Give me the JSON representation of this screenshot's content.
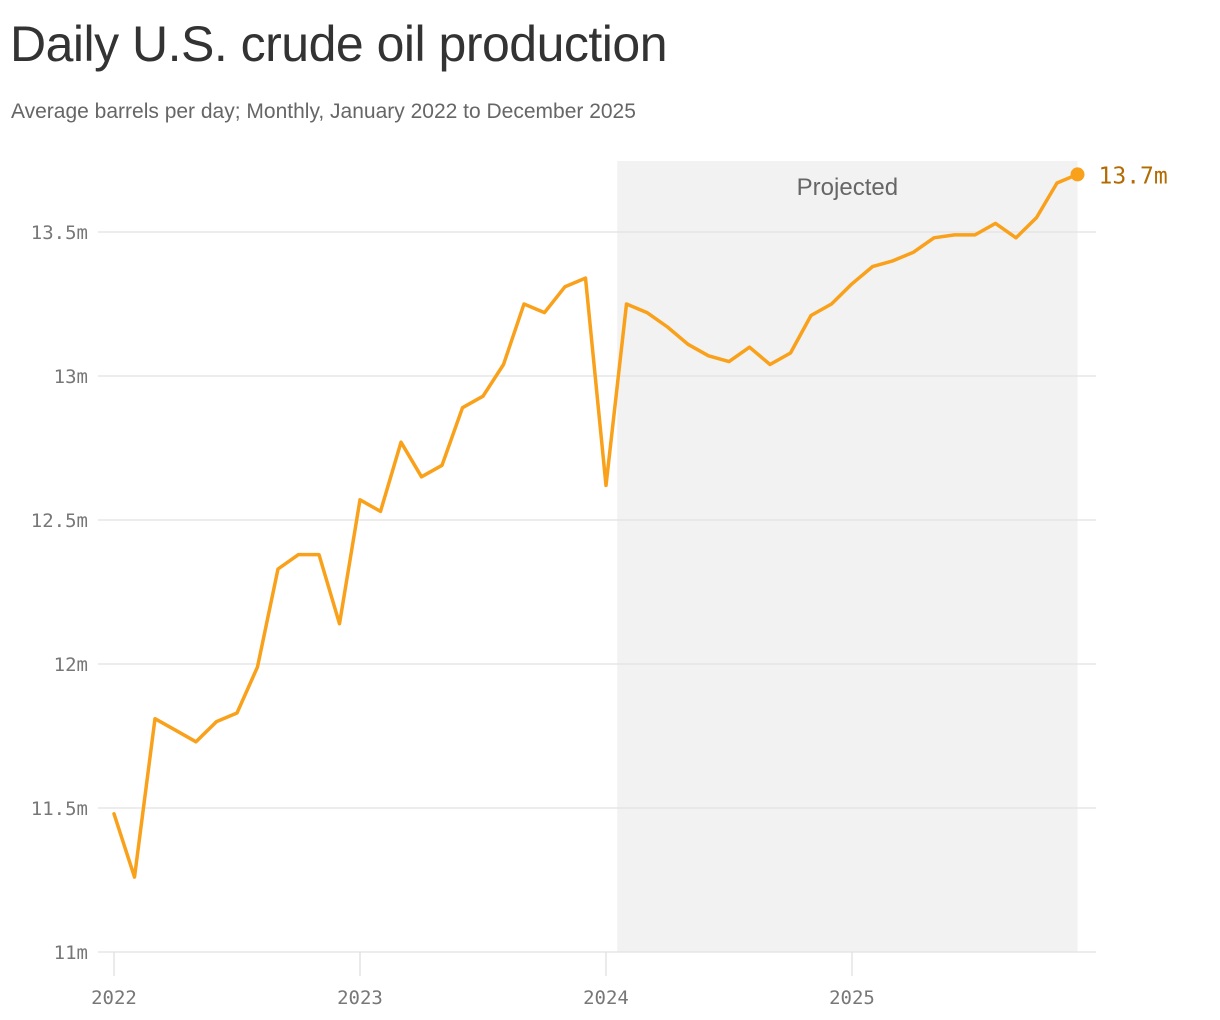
{
  "title": "Daily U.S. crude oil production",
  "subtitle": "Average barrels per day; Monthly, January 2022 to December 2025",
  "colors": {
    "line": "#f9a11b",
    "projected_band": "#f2f2f2",
    "grid": "#e2e2e2",
    "end_label": "#b26b00"
  },
  "chart_data": {
    "type": "line",
    "title": "Daily U.S. crude oil production",
    "subtitle": "Average barrels per day; Monthly, January 2022 to December 2025",
    "xlabel": "",
    "ylabel": "",
    "ylim": [
      11.0,
      13.75
    ],
    "xlim": [
      "2022-01",
      "2025-12"
    ],
    "y_ticks": [
      {
        "value": 11.0,
        "label": "11m"
      },
      {
        "value": 11.5,
        "label": "11.5m"
      },
      {
        "value": 12.0,
        "label": "12m"
      },
      {
        "value": 12.5,
        "label": "12.5m"
      },
      {
        "value": 13.0,
        "label": "13m"
      },
      {
        "value": 13.5,
        "label": "13.5m"
      }
    ],
    "x_ticks": [
      {
        "value": "2022-01",
        "label": "2022"
      },
      {
        "value": "2023-01",
        "label": "2023"
      },
      {
        "value": "2024-01",
        "label": "2024"
      },
      {
        "value": "2025-01",
        "label": "2025"
      }
    ],
    "grid": true,
    "legend": "none",
    "projected": {
      "label": "Projected",
      "start": "2024-02",
      "end": "2025-12"
    },
    "end_label": "13.7m",
    "x": [
      "2022-01",
      "2022-02",
      "2022-03",
      "2022-04",
      "2022-05",
      "2022-06",
      "2022-07",
      "2022-08",
      "2022-09",
      "2022-10",
      "2022-11",
      "2022-12",
      "2023-01",
      "2023-02",
      "2023-03",
      "2023-04",
      "2023-05",
      "2023-06",
      "2023-07",
      "2023-08",
      "2023-09",
      "2023-10",
      "2023-11",
      "2023-12",
      "2024-01",
      "2024-02",
      "2024-03",
      "2024-04",
      "2024-05",
      "2024-06",
      "2024-07",
      "2024-08",
      "2024-09",
      "2024-10",
      "2024-11",
      "2024-12",
      "2025-01",
      "2025-02",
      "2025-03",
      "2025-04",
      "2025-05",
      "2025-06",
      "2025-07",
      "2025-08",
      "2025-09",
      "2025-10",
      "2025-11",
      "2025-12"
    ],
    "series": [
      {
        "values": [
          11.48,
          11.26,
          11.81,
          11.77,
          11.73,
          11.8,
          11.83,
          11.99,
          12.33,
          12.38,
          12.38,
          12.14,
          12.57,
          12.53,
          12.77,
          12.65,
          12.69,
          12.89,
          12.93,
          13.04,
          13.25,
          13.22,
          13.31,
          13.34,
          12.62,
          13.25,
          13.22,
          13.17,
          13.11,
          13.07,
          13.05,
          13.1,
          13.04,
          13.08,
          13.21,
          13.25,
          13.32,
          13.38,
          13.4,
          13.43,
          13.48,
          13.49,
          13.49,
          13.53,
          13.48,
          13.55,
          13.67,
          13.7
        ]
      }
    ]
  }
}
